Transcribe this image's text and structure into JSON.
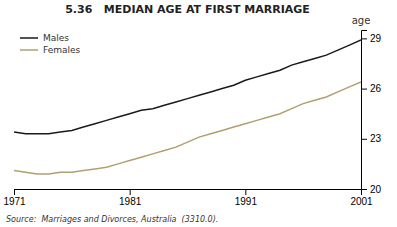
{
  "chart_data": {
    "type": "line",
    "title": "5.36   MEDIAN AGE AT FIRST MARRIAGE",
    "ylabel": "age",
    "annotations": [
      "Source:  Marriages and Divorces, Australia  (3310.0)."
    ],
    "x": [
      1971,
      1972,
      1973,
      1974,
      1975,
      1976,
      1977,
      1978,
      1979,
      1980,
      1981,
      1982,
      1983,
      1984,
      1985,
      1986,
      1987,
      1988,
      1989,
      1990,
      1991,
      1992,
      1993,
      1994,
      1995,
      1996,
      1997,
      1998,
      1999,
      2000,
      2001
    ],
    "series": [
      {
        "name": "Males",
        "color": "#1a1a1a",
        "values": [
          23.4,
          23.3,
          23.3,
          23.3,
          23.4,
          23.5,
          23.7,
          23.9,
          24.1,
          24.3,
          24.5,
          24.7,
          24.8,
          25.0,
          25.2,
          25.4,
          25.6,
          25.8,
          26.0,
          26.2,
          26.5,
          26.7,
          26.9,
          27.1,
          27.4,
          27.6,
          27.8,
          28.0,
          28.3,
          28.6,
          28.9
        ]
      },
      {
        "name": "Females",
        "color": "#b0a070",
        "values": [
          21.1,
          21.0,
          20.9,
          20.9,
          21.0,
          21.0,
          21.1,
          21.2,
          21.3,
          21.5,
          21.7,
          21.9,
          22.1,
          22.3,
          22.5,
          22.8,
          23.1,
          23.3,
          23.5,
          23.7,
          23.9,
          24.1,
          24.3,
          24.5,
          24.8,
          25.1,
          25.3,
          25.5,
          25.8,
          26.1,
          26.4
        ]
      }
    ],
    "xlim": [
      1971,
      2001
    ],
    "ylim": [
      20,
      29.5
    ],
    "xticks": [
      1971,
      1981,
      1991,
      2001
    ],
    "yticks": [
      20,
      23,
      26,
      29
    ],
    "grid": false,
    "legend": "top-left"
  }
}
